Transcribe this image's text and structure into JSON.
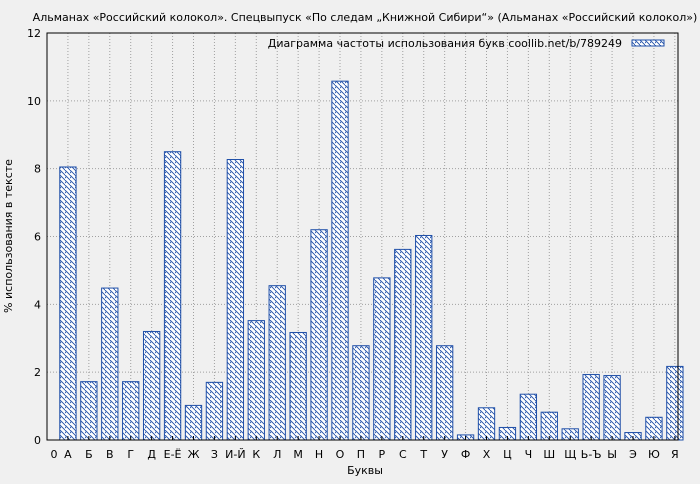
{
  "chart_data": {
    "type": "bar",
    "title": "Альманах «Российский колокол». Спецвыпуск «По следам „Книжной Сибири“» (Альманах «Российский колокол»)",
    "xlabel": "Буквы",
    "ylabel": "% использования в тексте",
    "ylim": [
      0,
      12
    ],
    "yticks": [
      "0",
      "2",
      "4",
      "6",
      "8",
      "10",
      "12"
    ],
    "grid": true,
    "legend_position": "top-right",
    "x_start_label": "0",
    "categories": [
      "А",
      "Б",
      "В",
      "Г",
      "Д",
      "Е-Ё",
      "Ж",
      "З",
      "И-Й",
      "К",
      "Л",
      "М",
      "Н",
      "О",
      "П",
      "Р",
      "С",
      "Т",
      "У",
      "Ф",
      "Х",
      "Ц",
      "Ч",
      "Ш",
      "Щ",
      "Ь-Ъ",
      "Ы",
      "Э",
      "Ю",
      "Я"
    ],
    "series": [
      {
        "name": "Диаграмма частоты использования букв coollib.net/b/789249",
        "values": [
          8.05,
          1.72,
          4.48,
          1.72,
          3.2,
          8.5,
          1.02,
          1.7,
          8.27,
          3.52,
          4.55,
          3.17,
          6.2,
          10.58,
          2.78,
          4.78,
          5.62,
          6.03,
          2.78,
          0.15,
          0.95,
          0.37,
          1.35,
          0.82,
          0.33,
          1.93,
          1.9,
          0.22,
          0.67,
          2.17
        ]
      }
    ],
    "colors": {
      "bar_stroke": "#1f4fa8",
      "bar_hatch": "#1f4fa8",
      "bar_fill": "#ffffff",
      "grid": "#a0a0a0",
      "frame": "#000000",
      "background": "#f0f0f0"
    }
  }
}
